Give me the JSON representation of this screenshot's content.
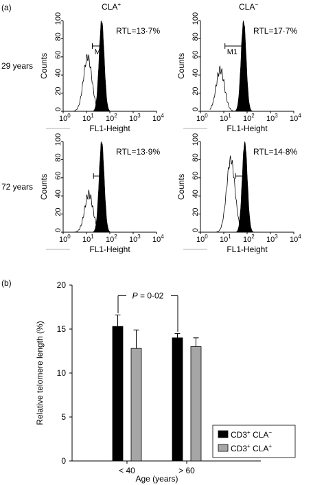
{
  "figure": {
    "panel_a_label": "(a)",
    "panel_b_label": "(b)"
  },
  "histograms": {
    "col_headers": [
      {
        "base": "CLA",
        "sup": "+"
      },
      {
        "base": "CLA",
        "sup": "−"
      }
    ],
    "row_labels": [
      "29 years",
      "72 years"
    ],
    "ylabel": "Counts",
    "xlabel": "FL1-Height",
    "yticks": [
      "0",
      "20",
      "40",
      "60",
      "80",
      "100"
    ],
    "xtick_base": "10",
    "xtick_exps": [
      "0",
      "1",
      "2",
      "3",
      "4"
    ],
    "marker_label": "M1",
    "panels": [
      {
        "rtl": "RTL=13·7%",
        "open_peak_log": 1.05,
        "filled_peak_log": 1.65,
        "open_height": 60,
        "filled_height": 100,
        "marker_label_shown": true
      },
      {
        "rtl": "RTL=17·7%",
        "open_peak_log": 0.85,
        "filled_peak_log": 1.85,
        "open_height": 46,
        "filled_height": 100,
        "marker_label_shown": true
      },
      {
        "rtl": "RTL=13·9%",
        "open_peak_log": 1.1,
        "filled_peak_log": 1.65,
        "open_height": 42,
        "filled_height": 100,
        "marker_label_shown": false
      },
      {
        "rtl": "RTL=14·8%",
        "open_peak_log": 1.3,
        "filled_peak_log": 1.9,
        "open_height": 80,
        "filled_height": 100,
        "marker_label_shown": false
      }
    ]
  },
  "chart_data": {
    "type": "bar",
    "categories": [
      "< 40",
      "> 60"
    ],
    "series": [
      {
        "name": "CD3+ CLA−",
        "values": [
          15.3,
          14.0
        ],
        "errors": [
          1.3,
          0.5
        ],
        "color": "#000000"
      },
      {
        "name": "CD3+ CLA+",
        "values": [
          12.8,
          13.0
        ],
        "errors": [
          2.1,
          1.0
        ],
        "color": "#a6a6a6"
      }
    ],
    "xlabel": "Age (years)",
    "ylabel": "Relative telomere length (%)",
    "ylim": [
      0,
      20
    ],
    "yticks": [
      "0",
      "5",
      "10",
      "15",
      "20"
    ],
    "annotation": {
      "italic": "P",
      "rest": " = 0·02"
    },
    "legend": [
      {
        "base": "CD3",
        "sup1": "+",
        "mid": " CLA",
        "sup2": "−"
      },
      {
        "base": "CD3",
        "sup1": "+",
        "mid": " CLA",
        "sup2": "+"
      }
    ],
    "legend_position": "bottom-right"
  }
}
